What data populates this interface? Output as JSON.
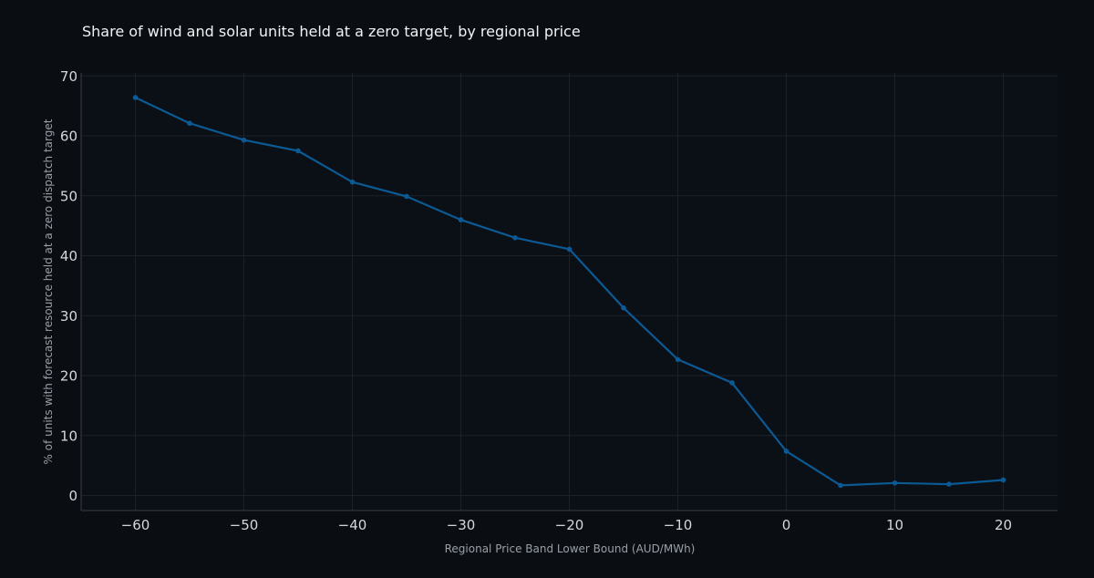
{
  "colors": {
    "background": "#0a0d12",
    "plot_background": "#0b0f16",
    "series": "#0b5a94",
    "grid": "#1c2128"
  },
  "chart_data": {
    "type": "line",
    "title": "Share of wind and solar units held at a zero target, by regional price",
    "xlabel": "Regional Price Band Lower Bound (AUD/MWh)",
    "ylabel": "% of units with forecast resource held at a zero dispatch target",
    "xlim": [
      -65,
      25
    ],
    "ylim": [
      -2.5,
      70.5
    ],
    "xticks": [
      -60,
      -50,
      -40,
      -30,
      -20,
      -10,
      0,
      10,
      20
    ],
    "yticks": [
      0,
      10,
      20,
      30,
      40,
      50,
      60,
      70
    ],
    "xtick_labels": [
      "−60",
      "−50",
      "−40",
      "−30",
      "−20",
      "−10",
      "0",
      "10",
      "20"
    ],
    "ytick_labels": [
      "0",
      "10",
      "20",
      "30",
      "40",
      "50",
      "60",
      "70"
    ],
    "grid": true,
    "legend": false,
    "series": [
      {
        "x": [
          -60,
          -55,
          -50,
          -45,
          -40,
          -35,
          -30,
          -25,
          -20,
          -15,
          -10,
          -5,
          0,
          5,
          10,
          15,
          20
        ],
        "y": [
          66.4,
          62.1,
          59.3,
          57.5,
          52.3,
          49.9,
          46.0,
          43.0,
          41.1,
          31.3,
          22.7,
          18.8,
          7.4,
          1.7,
          2.1,
          1.9,
          2.6
        ]
      }
    ]
  }
}
